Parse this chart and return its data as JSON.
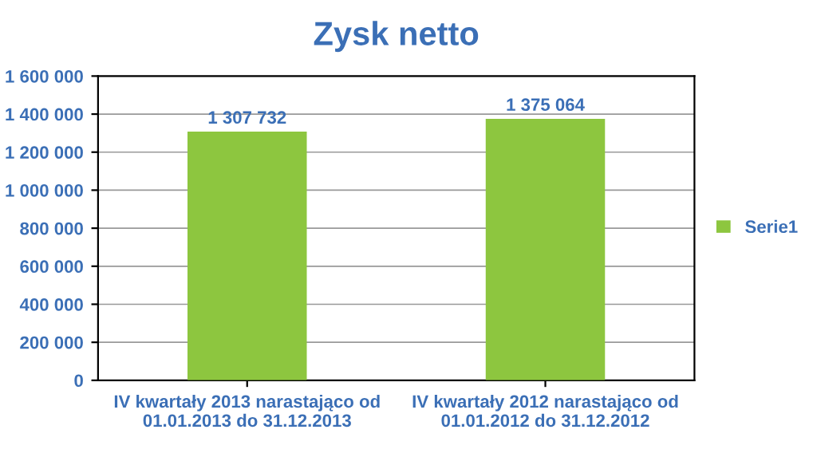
{
  "chart_data": {
    "type": "bar",
    "title": "Zysk netto",
    "categories": [
      "IV kwartały 2013 narastająco od\n01.01.2013 do 31.12.2013",
      "IV kwartały 2012 narastająco od\n01.01.2012 do 31.12.2012"
    ],
    "series": [
      {
        "name": "Serie1",
        "color": "#8dc63f",
        "values": [
          1307732,
          1375064
        ],
        "value_labels": [
          "1 307 732",
          "1 375 064"
        ]
      }
    ],
    "ylim": [
      0,
      1600000
    ],
    "yticks": [
      {
        "value": 0,
        "label": "0"
      },
      {
        "value": 200000,
        "label": "200 000"
      },
      {
        "value": 400000,
        "label": "400 000"
      },
      {
        "value": 600000,
        "label": "600 000"
      },
      {
        "value": 800000,
        "label": "800 000"
      },
      {
        "value": 1000000,
        "label": "1 000 000"
      },
      {
        "value": 1200000,
        "label": "1 200 000"
      },
      {
        "value": 1400000,
        "label": "1 400 000"
      },
      {
        "value": 1600000,
        "label": "1 600 000"
      }
    ],
    "grid": "y",
    "legend": "right"
  }
}
